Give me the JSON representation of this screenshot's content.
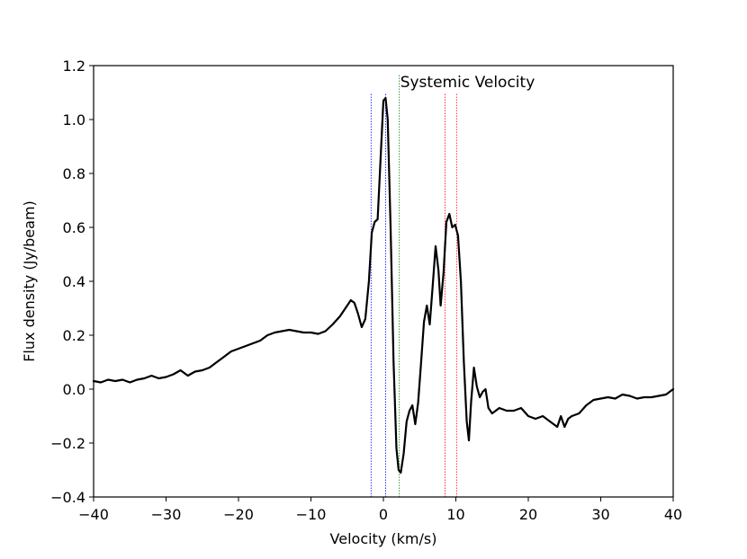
{
  "chart_data": {
    "type": "line",
    "title": "",
    "xlabel": "Velocity (km/s)",
    "ylabel": "Flux density (Jy/beam)",
    "xlim": [
      -40,
      40
    ],
    "ylim": [
      -0.4,
      1.2
    ],
    "xticks": [
      -40,
      -30,
      -20,
      -10,
      0,
      10,
      20,
      30,
      40
    ],
    "yticks": [
      -0.4,
      -0.2,
      0.0,
      0.2,
      0.4,
      0.6,
      0.8,
      1.0,
      1.2
    ],
    "xtick_labels": [
      "−40",
      "−30",
      "−20",
      "−10",
      "0",
      "10",
      "20",
      "30",
      "40"
    ],
    "ytick_labels": [
      "−0.4",
      "−0.2",
      "0.0",
      "0.2",
      "0.4",
      "0.6",
      "0.8",
      "1.0",
      "1.2"
    ],
    "grid": false,
    "annotation": {
      "text": "Systemic Velocity",
      "x": 2.2,
      "y": 1.14
    },
    "vlines": [
      {
        "x": -1.7,
        "ymin": -0.4,
        "ymax": 1.1,
        "color": "#0000ff",
        "style": "dotted"
      },
      {
        "x": 0.3,
        "ymin": -0.4,
        "ymax": 1.1,
        "color": "#0000ff",
        "style": "dotted"
      },
      {
        "x": 2.2,
        "ymin": -0.4,
        "ymax": 1.17,
        "color": "#008000",
        "style": "dotted"
      },
      {
        "x": 8.5,
        "ymin": -0.4,
        "ymax": 1.1,
        "color": "#ff0000",
        "style": "dotted"
      },
      {
        "x": 10.1,
        "ymin": -0.4,
        "ymax": 1.1,
        "color": "#ff0000",
        "style": "dotted"
      }
    ],
    "series": [
      {
        "color": "#000000",
        "points": [
          [
            -40,
            0.03
          ],
          [
            -39,
            0.025
          ],
          [
            -38,
            0.035
          ],
          [
            -37,
            0.03
          ],
          [
            -36,
            0.035
          ],
          [
            -35,
            0.025
          ],
          [
            -34,
            0.035
          ],
          [
            -33,
            0.04
          ],
          [
            -32,
            0.05
          ],
          [
            -31,
            0.04
          ],
          [
            -30,
            0.045
          ],
          [
            -29,
            0.055
          ],
          [
            -28,
            0.07
          ],
          [
            -27,
            0.05
          ],
          [
            -26,
            0.065
          ],
          [
            -25,
            0.07
          ],
          [
            -24,
            0.08
          ],
          [
            -23,
            0.1
          ],
          [
            -22,
            0.12
          ],
          [
            -21,
            0.14
          ],
          [
            -20,
            0.15
          ],
          [
            -19,
            0.16
          ],
          [
            -18,
            0.17
          ],
          [
            -17,
            0.18
          ],
          [
            -16,
            0.2
          ],
          [
            -15,
            0.21
          ],
          [
            -14,
            0.215
          ],
          [
            -13,
            0.22
          ],
          [
            -12,
            0.215
          ],
          [
            -11,
            0.21
          ],
          [
            -10,
            0.21
          ],
          [
            -9,
            0.205
          ],
          [
            -8,
            0.215
          ],
          [
            -7,
            0.24
          ],
          [
            -6,
            0.27
          ],
          [
            -5,
            0.31
          ],
          [
            -4.5,
            0.33
          ],
          [
            -4,
            0.32
          ],
          [
            -3.5,
            0.28
          ],
          [
            -3,
            0.23
          ],
          [
            -2.5,
            0.26
          ],
          [
            -2,
            0.4
          ],
          [
            -1.6,
            0.58
          ],
          [
            -1.2,
            0.62
          ],
          [
            -0.8,
            0.63
          ],
          [
            -0.4,
            0.85
          ],
          [
            0,
            1.07
          ],
          [
            0.3,
            1.08
          ],
          [
            0.6,
            1.0
          ],
          [
            1.0,
            0.6
          ],
          [
            1.4,
            0.1
          ],
          [
            1.8,
            -0.22
          ],
          [
            2.1,
            -0.3
          ],
          [
            2.4,
            -0.31
          ],
          [
            2.8,
            -0.24
          ],
          [
            3.2,
            -0.12
          ],
          [
            3.6,
            -0.08
          ],
          [
            4.0,
            -0.06
          ],
          [
            4.4,
            -0.13
          ],
          [
            4.8,
            -0.05
          ],
          [
            5.2,
            0.1
          ],
          [
            5.6,
            0.25
          ],
          [
            6.0,
            0.31
          ],
          [
            6.4,
            0.24
          ],
          [
            6.8,
            0.38
          ],
          [
            7.2,
            0.53
          ],
          [
            7.6,
            0.44
          ],
          [
            7.9,
            0.31
          ],
          [
            8.3,
            0.43
          ],
          [
            8.7,
            0.62
          ],
          [
            9.1,
            0.65
          ],
          [
            9.5,
            0.6
          ],
          [
            9.9,
            0.61
          ],
          [
            10.3,
            0.57
          ],
          [
            10.7,
            0.4
          ],
          [
            11.1,
            0.1
          ],
          [
            11.5,
            -0.12
          ],
          [
            11.8,
            -0.19
          ],
          [
            12.1,
            -0.05
          ],
          [
            12.5,
            0.08
          ],
          [
            12.9,
            0.01
          ],
          [
            13.3,
            -0.03
          ],
          [
            13.7,
            -0.01
          ],
          [
            14.1,
            0.0
          ],
          [
            14.5,
            -0.07
          ],
          [
            15,
            -0.09
          ],
          [
            16,
            -0.07
          ],
          [
            17,
            -0.08
          ],
          [
            18,
            -0.08
          ],
          [
            19,
            -0.07
          ],
          [
            20,
            -0.1
          ],
          [
            21,
            -0.11
          ],
          [
            22,
            -0.1
          ],
          [
            23,
            -0.12
          ],
          [
            24,
            -0.14
          ],
          [
            24.5,
            -0.1
          ],
          [
            25,
            -0.14
          ],
          [
            25.5,
            -0.11
          ],
          [
            26,
            -0.1
          ],
          [
            27,
            -0.09
          ],
          [
            28,
            -0.06
          ],
          [
            29,
            -0.04
          ],
          [
            30,
            -0.035
          ],
          [
            31,
            -0.03
          ],
          [
            32,
            -0.035
          ],
          [
            33,
            -0.02
          ],
          [
            34,
            -0.025
          ],
          [
            35,
            -0.035
          ],
          [
            36,
            -0.03
          ],
          [
            37,
            -0.03
          ],
          [
            38,
            -0.025
          ],
          [
            39,
            -0.02
          ],
          [
            40,
            0.0
          ]
        ]
      }
    ]
  }
}
